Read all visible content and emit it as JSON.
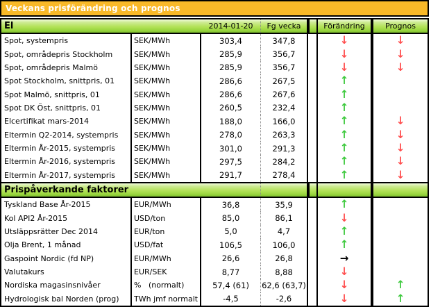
{
  "title": "Veckans prisförändring och prognos",
  "colors": {
    "title_bar_bg": "#F9B928",
    "title_text": "#FFFFFF",
    "section_band_green": "#9AD63F",
    "arrow_up": "#3DC93D",
    "arrow_down": "#FF4D4D",
    "arrow_right": "#000000"
  },
  "sections": [
    {
      "header": "El",
      "columns": [
        "2014-01-20",
        "Fg vecka",
        "Förändring",
        "Prognos"
      ],
      "rows": [
        {
          "name": "Spot, systempris",
          "unit": "SEK/MWh",
          "current": "303,4",
          "previous": "347,8",
          "change": "down",
          "forecast": "down"
        },
        {
          "name": "Spot, områdepris Stockholm",
          "unit": "SEK/MWh",
          "current": "285,9",
          "previous": "356,7",
          "change": "down",
          "forecast": "down"
        },
        {
          "name": "Spot, områdepris Malmö",
          "unit": "SEK/MWh",
          "current": "285,9",
          "previous": "356,7",
          "change": "down",
          "forecast": "down"
        },
        {
          "name": "Spot Stockholm, snittpris,  01",
          "unit": "SEK/MWh",
          "current": "286,6",
          "previous": "267,5",
          "change": "up",
          "forecast": ""
        },
        {
          "name": "Spot Malmö, snittpris,  01",
          "unit": "SEK/MWh",
          "current": "286,6",
          "previous": "267,6",
          "change": "up",
          "forecast": ""
        },
        {
          "name": "Spot DK Öst, snittpris,  01",
          "unit": "SEK/MWh",
          "current": "260,5",
          "previous": "232,4",
          "change": "up",
          "forecast": ""
        },
        {
          "name": "Elcertifikat mars-2014",
          "unit": "SEK/MWh",
          "current": "188,0",
          "previous": "166,0",
          "change": "up",
          "forecast": "down"
        },
        {
          "name": "Eltermin Q2-2014, systempris",
          "unit": "SEK/MWh",
          "current": "278,0",
          "previous": "263,3",
          "change": "up",
          "forecast": "down"
        },
        {
          "name": "Eltermin År-2015, systempris",
          "unit": "SEK/MWh",
          "current": "301,0",
          "previous": "291,3",
          "change": "up",
          "forecast": "down"
        },
        {
          "name": "Eltermin År-2016, systempris",
          "unit": "SEK/MWh",
          "current": "297,5",
          "previous": "284,2",
          "change": "up",
          "forecast": "down"
        },
        {
          "name": "Eltermin År-2017, systempris",
          "unit": "SEK/MWh",
          "current": "291,7",
          "previous": "278,4",
          "change": "up",
          "forecast": "down"
        }
      ]
    },
    {
      "header": "Prispåverkande faktorer",
      "rows": [
        {
          "name": "Tyskland Base År-2015",
          "unit": "EUR/MWh",
          "current": "36,8",
          "previous": "35,9",
          "change": "up",
          "forecast": ""
        },
        {
          "name": "Kol API2 År-2015",
          "unit": "USD/ton",
          "current": "85,0",
          "previous": "86,1",
          "change": "down",
          "forecast": ""
        },
        {
          "name": "Utsläppsrätter Dec 2014",
          "unit": "EUR/ton",
          "current": "5,0",
          "previous": "4,7",
          "change": "up",
          "forecast": ""
        },
        {
          "name": "Olja Brent, 1 månad",
          "unit": "USD/fat",
          "current": "106,5",
          "previous": "106,0",
          "change": "up",
          "forecast": ""
        },
        {
          "name": "Gaspoint Nordic (fd NP)",
          "unit": "EUR/MWh",
          "current": "26,6",
          "previous": "26,8",
          "change": "right",
          "forecast": ""
        },
        {
          "name": "Valutakurs",
          "unit": "EUR/SEK",
          "current": "8,77",
          "previous": "8,88",
          "change": "down",
          "forecast": ""
        },
        {
          "name": "Nordiska magasinsnivåer",
          "unit": "%   (normalt)",
          "current": "57,4 (61)",
          "previous": "62,6 (63,7)",
          "change": "down",
          "forecast": "up"
        },
        {
          "name": "Hydrologisk bal Norden (prog)",
          "unit": "TWh jmf normalt",
          "current": "-4,5",
          "previous": "-2,6",
          "change": "down",
          "forecast": "up"
        }
      ]
    }
  ]
}
